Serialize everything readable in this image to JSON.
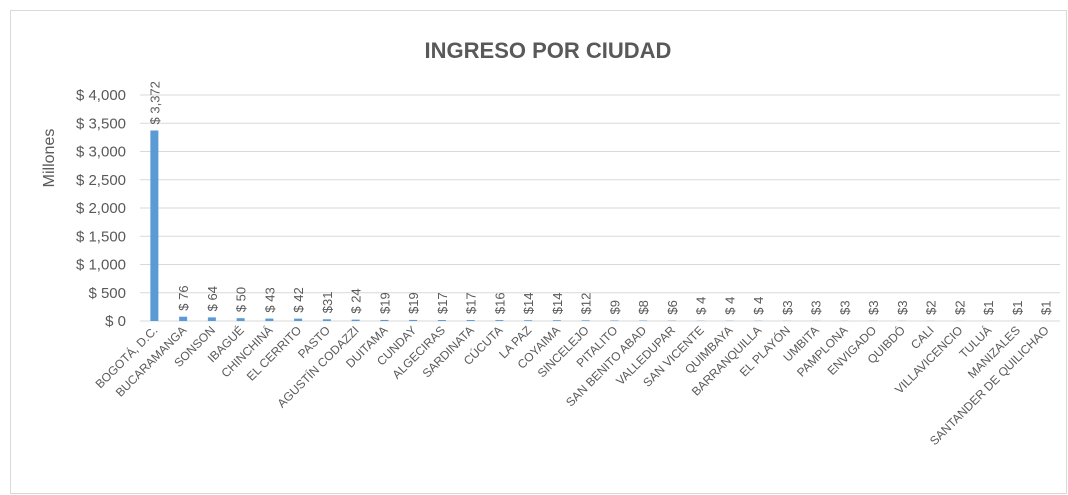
{
  "chart_data": {
    "type": "bar",
    "title": "INGRESO POR CIUDAD",
    "y_label": "Millones",
    "categories": [
      "BOGOTÁ, D.C.",
      "BUCARAMANGA",
      "SONSON",
      "IBAGUÉ",
      "CHINCHINÁ",
      "EL CERRITO",
      "PASTO",
      "AGUSTÍN CODAZZI",
      "DUITAMA",
      "CUNDAY",
      "ALGECIRAS",
      "SARDINATA",
      "CÚCUTA",
      "LA PAZ",
      "COYAIMA",
      "SINCELEJO",
      "PITALITO",
      "SAN BENITO ABAD",
      "VALLEDUPAR",
      "SAN VICENTE",
      "QUIMBAYA",
      "BARRANQUILLA",
      "EL PLAYÓN",
      "UMBITA",
      "PAMPLONA",
      "ENVIGADO",
      "QUIBDÓ",
      "CALI",
      "VILLAVICENCIO",
      "TULUÁ",
      "MANIZALES",
      "SANTANDER DE QUILICHAO"
    ],
    "values": [
      3372,
      76,
      64,
      50,
      43,
      42,
      31,
      24,
      19,
      19,
      17,
      17,
      16,
      14,
      14,
      12,
      9,
      8,
      6,
      4,
      4,
      4,
      3,
      3,
      3,
      3,
      3,
      2,
      2,
      1,
      1,
      1
    ],
    "value_labels": [
      "$ 3,372",
      "$ 76",
      "$ 64",
      "$ 50",
      "$ 43",
      "$ 42",
      "$31",
      "$ 24",
      "$19",
      "$19",
      "$17",
      "$17",
      "$16",
      "$14",
      "$14",
      "$12",
      "$9",
      "$8",
      "$6",
      "$ 4",
      "$ 4",
      "$ 4",
      "$3",
      "$3",
      "$3",
      "$3",
      "$3",
      "$2",
      "$2",
      "$1",
      "$1",
      "$1"
    ],
    "color": "#5b9bd5",
    "ylim": [
      0,
      4000
    ],
    "yticks": [
      {
        "value": 0,
        "label": "$ 0"
      },
      {
        "value": 500,
        "label": "$ 500"
      },
      {
        "value": 1000,
        "label": "$ 1,000"
      },
      {
        "value": 1500,
        "label": "$ 1,500"
      },
      {
        "value": 2000,
        "label": "$ 2,000"
      },
      {
        "value": 2500,
        "label": "$ 2,500"
      },
      {
        "value": 3000,
        "label": "$ 3,000"
      },
      {
        "value": 3500,
        "label": "$ 3,500"
      },
      {
        "value": 4000,
        "label": "$ 4,000"
      }
    ],
    "grid": true
  }
}
